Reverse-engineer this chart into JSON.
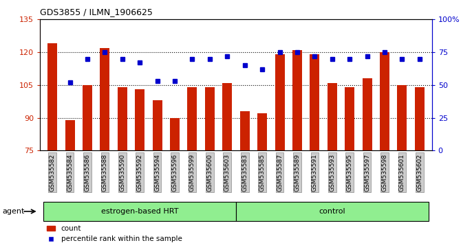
{
  "title": "GDS3855 / ILMN_1906625",
  "samples": [
    "GSM535582",
    "GSM535584",
    "GSM535586",
    "GSM535588",
    "GSM535590",
    "GSM535592",
    "GSM535594",
    "GSM535596",
    "GSM535599",
    "GSM535600",
    "GSM535603",
    "GSM535583",
    "GSM535585",
    "GSM535587",
    "GSM535589",
    "GSM535591",
    "GSM535593",
    "GSM535595",
    "GSM535597",
    "GSM535598",
    "GSM535601",
    "GSM535602"
  ],
  "bar_values": [
    124,
    89,
    105,
    122,
    104,
    103,
    98,
    90,
    104,
    104,
    106,
    93,
    92,
    119,
    121,
    119,
    106,
    104,
    108,
    120,
    105,
    104
  ],
  "pct_values": [
    null,
    52,
    70,
    75,
    70,
    67,
    53,
    53,
    70,
    70,
    72,
    65,
    62,
    75,
    75,
    72,
    70,
    70,
    72,
    75,
    70,
    70
  ],
  "groups": [
    {
      "label": "estrogen-based HRT",
      "start": 0,
      "end": 11
    },
    {
      "label": "control",
      "start": 11,
      "end": 22
    }
  ],
  "ylim_left": [
    75,
    135
  ],
  "ylim_right": [
    0,
    100
  ],
  "yticks_left": [
    75,
    90,
    105,
    120,
    135
  ],
  "yticks_right": [
    0,
    25,
    50,
    75,
    100
  ],
  "bar_color": "#cc2200",
  "dot_color": "#0000cc",
  "group_bg_color": "#90ee90",
  "tick_label_bg": "#cccccc",
  "agent_label": "agent"
}
